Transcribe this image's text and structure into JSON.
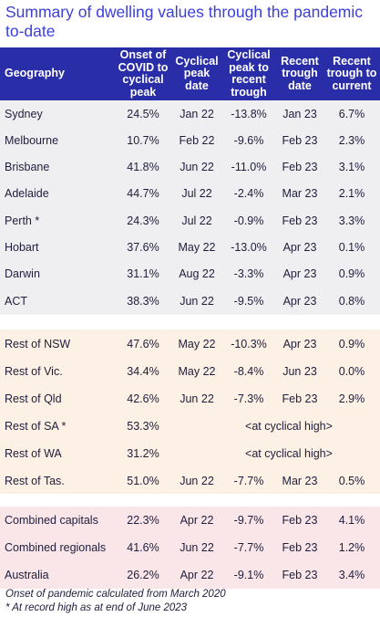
{
  "title": "Summary of dwelling values through the pandemic to-date",
  "headers": {
    "geography": "Geography",
    "onset": "Onset of\nCOVID to\ncyclical\npeak",
    "peak_date": "Cyclical\npeak\ndate",
    "peak_trough": "Cyclical\npeak to\nrecent\ntrough",
    "trough_date": "Recent\ntrough\ndate",
    "trough_current": "Recent\ntrough to\ncurrent"
  },
  "capitals": [
    {
      "geo": "Sydney",
      "onset": "24.5%",
      "peak_date": "Jan 22",
      "peak_trough": "-13.8%",
      "trough_date": "Jan 23",
      "current": "6.7%"
    },
    {
      "geo": "Melbourne",
      "onset": "10.7%",
      "peak_date": "Feb 22",
      "peak_trough": "-9.6%",
      "trough_date": "Feb 23",
      "current": "2.3%"
    },
    {
      "geo": "Brisbane",
      "onset": "41.8%",
      "peak_date": "Jun 22",
      "peak_trough": "-11.0%",
      "trough_date": "Feb 23",
      "current": "3.1%"
    },
    {
      "geo": "Adelaide",
      "onset": "44.7%",
      "peak_date": "Jul 22",
      "peak_trough": "-2.4%",
      "trough_date": "Mar 23",
      "current": "2.1%"
    },
    {
      "geo": "Perth *",
      "onset": "24.3%",
      "peak_date": "Jul 22",
      "peak_trough": "-0.9%",
      "trough_date": "Feb 23",
      "current": "3.3%"
    },
    {
      "geo": "Hobart",
      "onset": "37.6%",
      "peak_date": "May 22",
      "peak_trough": "-13.0%",
      "trough_date": "Apr 23",
      "current": "0.1%"
    },
    {
      "geo": "Darwin",
      "onset": "31.1%",
      "peak_date": "Aug 22",
      "peak_trough": "-3.3%",
      "trough_date": "Apr 23",
      "current": "0.9%"
    },
    {
      "geo": "ACT",
      "onset": "38.3%",
      "peak_date": "Jun 22",
      "peak_trough": "-9.5%",
      "trough_date": "Apr 23",
      "current": "0.8%"
    }
  ],
  "regionals": [
    {
      "geo": "Rest of NSW",
      "onset": "47.6%",
      "peak_date": "May 22",
      "peak_trough": "-10.3%",
      "trough_date": "Apr 23",
      "current": "0.9%"
    },
    {
      "geo": "Rest of Vic.",
      "onset": "34.4%",
      "peak_date": "May 22",
      "peak_trough": "-8.4%",
      "trough_date": "Jun 23",
      "current": "0.0%"
    },
    {
      "geo": "Rest of Qld",
      "onset": "42.6%",
      "peak_date": "Jun 22",
      "peak_trough": "-7.3%",
      "trough_date": "Feb 23",
      "current": "2.9%"
    },
    {
      "geo": "Rest of SA *",
      "onset": "53.3%",
      "span": "<at cyclical high>"
    },
    {
      "geo": "Rest of WA",
      "onset": "31.2%",
      "span": "<at cyclical high>"
    },
    {
      "geo": "Rest of Tas.",
      "onset": "51.0%",
      "peak_date": "Jun 22",
      "peak_trough": "-7.7%",
      "trough_date": "Mar 23",
      "current": "0.5%"
    }
  ],
  "aggregates": [
    {
      "geo": "Combined capitals",
      "onset": "22.3%",
      "peak_date": "Apr 22",
      "peak_trough": "-9.7%",
      "trough_date": "Feb 23",
      "current": "4.1%"
    },
    {
      "geo": "Combined regionals",
      "onset": "41.6%",
      "peak_date": "Jun 22",
      "peak_trough": "-7.7%",
      "trough_date": "Feb 23",
      "current": "1.2%"
    },
    {
      "geo": "Australia",
      "onset": "26.2%",
      "peak_date": "Apr 22",
      "peak_trough": "-9.1%",
      "trough_date": "Feb 23",
      "current": "3.4%"
    }
  ],
  "notes": [
    "Onset of pandemic calculated from March 2020",
    "* At record high as at end of June 2023"
  ]
}
